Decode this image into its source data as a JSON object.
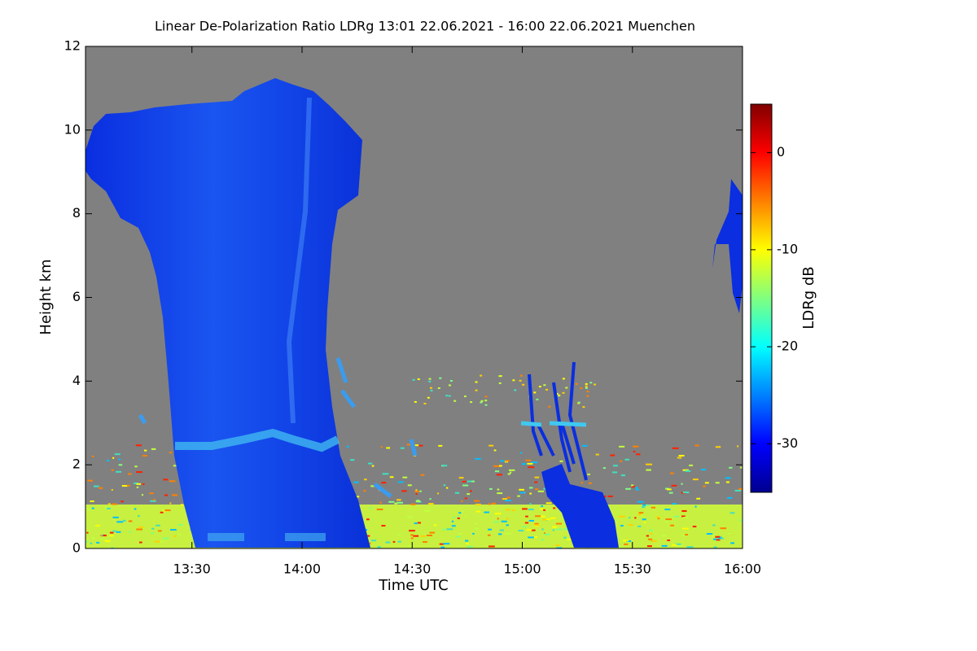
{
  "chart_data": {
    "type": "heatmap",
    "title": "Linear De-Polarization Ratio LDRg   13:01 22.06.2021 - 16:00 22.06.2021 Muenchen",
    "xlabel": "Time UTC",
    "ylabel": "Height km",
    "xlim": [
      13.0167,
      16.0
    ],
    "xticks": [
      {
        "value": 13.5,
        "label": "13:30"
      },
      {
        "value": 14.0,
        "label": "14:00"
      },
      {
        "value": 14.5,
        "label": "14:30"
      },
      {
        "value": 15.0,
        "label": "15:00"
      },
      {
        "value": 15.5,
        "label": "15:30"
      },
      {
        "value": 16.0,
        "label": "16:00"
      }
    ],
    "ylim": [
      0,
      12
    ],
    "yticks": [
      0,
      2,
      4,
      6,
      8,
      10,
      12
    ],
    "background": "#808080",
    "colorbar": {
      "label": "LDRg dB",
      "clim": [
        -35,
        5
      ],
      "ticks": [
        -30,
        -20,
        -10,
        0
      ],
      "colors": [
        "#00008f",
        "#0000ff",
        "#0080ff",
        "#00ffff",
        "#80ff80",
        "#ffff00",
        "#ff8000",
        "#ff0000",
        "#800000"
      ]
    }
  }
}
